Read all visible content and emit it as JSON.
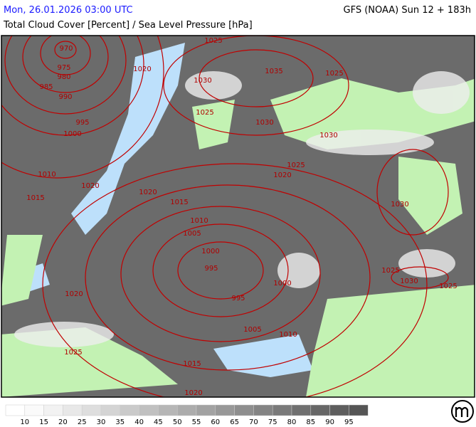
{
  "header": {
    "date": "Mon, 26.01.2026 03:00 UTC",
    "model": "GFS (NOAA) Sun 12 + 183h",
    "title": "Total Cloud Cover [Percent] / Sea Level Pressure [hPa]"
  },
  "isobar_labels": [
    "970",
    "975",
    "980",
    "985",
    "990",
    "995",
    "1000",
    "1010",
    "1015",
    "1020",
    "1020",
    "1025",
    "1030",
    "1035",
    "1025",
    "1025",
    "1030",
    "1030",
    "1025",
    "1020",
    "1020",
    "1015",
    "1030",
    "1010",
    "1005",
    "1000",
    "995",
    "995",
    "1000",
    "1005",
    "1010",
    "1020",
    "1025",
    "1015",
    "1020",
    "1025",
    "1030",
    "1025"
  ],
  "legend": {
    "labels": [
      "10",
      "15",
      "20",
      "25",
      "30",
      "35",
      "40",
      "45",
      "50",
      "55",
      "60",
      "65",
      "70",
      "75",
      "80",
      "85",
      "90",
      "95"
    ],
    "colors": [
      "#ffffff",
      "#fafafa",
      "#f2f2f2",
      "#e8e8e8",
      "#dedede",
      "#d4d4d4",
      "#cacaca",
      "#c0c0c0",
      "#b6b6b6",
      "#acacac",
      "#a2a2a2",
      "#989898",
      "#8e8e8e",
      "#848484",
      "#7a7a7a",
      "#707070",
      "#676767",
      "#5e5e5e",
      "#555555"
    ]
  }
}
